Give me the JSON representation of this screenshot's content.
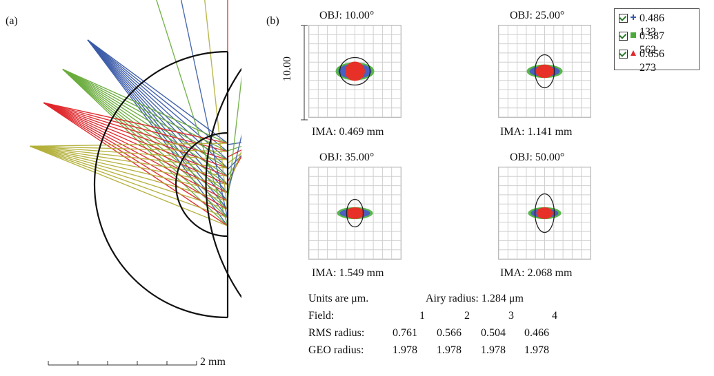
{
  "panel_a": {
    "label": "(a)",
    "scale_bar_label": "2 mm",
    "ray_colors": [
      "#3a5ba8",
      "#6aac3c",
      "#e0262b",
      "#b4b03a"
    ],
    "surface_color": "#111111"
  },
  "panel_b": {
    "label": "(b)",
    "scale_label": "10.00",
    "spots": [
      {
        "obj": "OBJ: 10.00°",
        "ima": "IMA: 0.469 mm"
      },
      {
        "obj": "OBJ: 25.00°",
        "ima": "IMA: 1.141 mm"
      },
      {
        "obj": "OBJ: 35.00°",
        "ima": "IMA: 1.549 mm"
      },
      {
        "obj": "OBJ: 50.00°",
        "ima": "IMA: 2.068 mm"
      }
    ],
    "legend": [
      {
        "value": "0.486 133",
        "color": "#3a5ba8",
        "marker": "plus-icon"
      },
      {
        "value": "0.587 562",
        "color": "#4caa3c",
        "marker": "square-icon"
      },
      {
        "value": "0.656 273",
        "color": "#e0262b",
        "marker": "triangle-icon"
      }
    ],
    "summary": {
      "units": "Units are μm.",
      "airy": "Airy radius: 1.284 μm",
      "field_label": "Field:",
      "fields": [
        "1",
        "2",
        "3",
        "4"
      ],
      "rms_label": "RMS radius:",
      "rms": [
        "0.761",
        "0.566",
        "0.504",
        "0.466"
      ],
      "geo_label": "GEO radius:",
      "geo": [
        "1.978",
        "1.978",
        "1.978",
        "1.978"
      ]
    }
  }
}
